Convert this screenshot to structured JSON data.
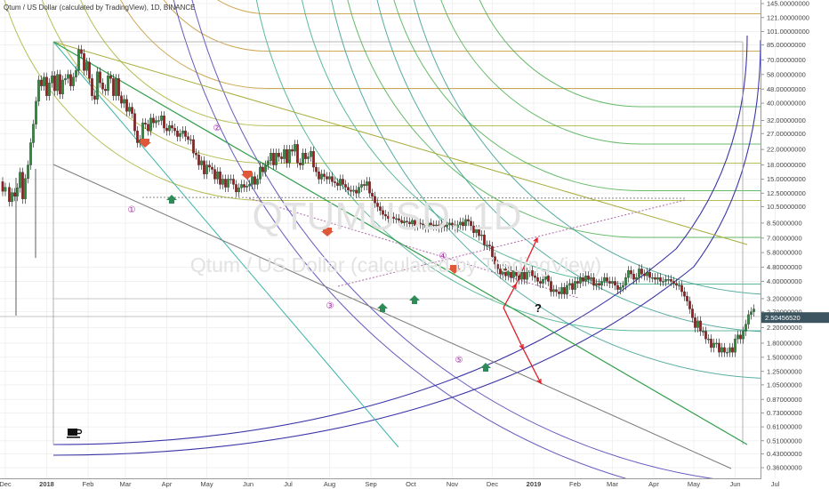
{
  "header": {
    "title": "Qtum / US Dollar (calculated by TradingView), 1D, BINANCE"
  },
  "watermark": {
    "symbol": "QTUMUSD, 1D",
    "name": "Qtum / US Dollar (calculated by TradingView)"
  },
  "chart_data": {
    "type": "candlestick",
    "symbol": "QTUMUSD",
    "interval": "1D",
    "exchange": "BINANCE",
    "y_scale": "log",
    "ylim": [
      0.36,
      145
    ],
    "current_price": "2.50456520",
    "y_ticks": [
      "145.00000000",
      "121.00000000",
      "101.00000000",
      "85.00000000",
      "70.00000000",
      "58.00000000",
      "48.00000000",
      "40.00000000",
      "32.00000000",
      "27.00000000",
      "22.00000000",
      "18.00000000",
      "15.00000000",
      "12.50000000",
      "10.50000000",
      "8.50000000",
      "7.00000000",
      "5.80000000",
      "4.80000000",
      "4.00000000",
      "3.20000000",
      "2.70000000",
      "2.20000000",
      "1.80000000",
      "1.50000000",
      "1.25000000",
      "1.05000000",
      "0.87000000",
      "0.73000000",
      "0.61000000",
      "0.51000000",
      "0.43000000",
      "0.36000000"
    ],
    "x_ticks": [
      "Dec",
      "2018",
      "Feb",
      "Mar",
      "Apr",
      "May",
      "Jun",
      "Jul",
      "Aug",
      "Sep",
      "Oct",
      "Nov",
      "Dec",
      "2019",
      "Feb",
      "Mar",
      "Apr",
      "May",
      "Jun",
      "Jul"
    ],
    "swing_labels": [
      "①",
      "②",
      "③",
      "④",
      "⑤"
    ],
    "annotation": "?",
    "price_path": [
      [
        0,
        14.5
      ],
      [
        2,
        12.8
      ],
      [
        4,
        13.5
      ],
      [
        7,
        11.2
      ],
      [
        9,
        12.6
      ],
      [
        11,
        12.0
      ],
      [
        13,
        13.4
      ],
      [
        15,
        16.4
      ],
      [
        17,
        11.6
      ],
      [
        19,
        15.1
      ],
      [
        21,
        18.0
      ],
      [
        23,
        24.0
      ],
      [
        25,
        30.5
      ],
      [
        27,
        41.0
      ],
      [
        29,
        54.0
      ],
      [
        31,
        50.0
      ],
      [
        33,
        56.0
      ],
      [
        35,
        44.0
      ],
      [
        37,
        52.0
      ],
      [
        39,
        57.0
      ],
      [
        41,
        47.0
      ],
      [
        43,
        58.0
      ],
      [
        45,
        45.0
      ],
      [
        47,
        54.0
      ],
      [
        49,
        55.0
      ],
      [
        51,
        58.0
      ],
      [
        53,
        50.0
      ],
      [
        55,
        56.0
      ],
      [
        57,
        61.0
      ],
      [
        59,
        80.0
      ],
      [
        61,
        76.0
      ],
      [
        63,
        61.0
      ],
      [
        65,
        68.0
      ],
      [
        67,
        55.0
      ],
      [
        69,
        44.0
      ],
      [
        71,
        42.0
      ],
      [
        73,
        60.0
      ],
      [
        75,
        52.0
      ],
      [
        77,
        48.0
      ],
      [
        79,
        47.0
      ],
      [
        81,
        57.0
      ],
      [
        83,
        55.0
      ],
      [
        85,
        44.0
      ],
      [
        87,
        55.0
      ],
      [
        89,
        44.0
      ],
      [
        91,
        40.0
      ],
      [
        93,
        42.0
      ],
      [
        95,
        36.0
      ],
      [
        97,
        38.0
      ],
      [
        99,
        35.0
      ],
      [
        101,
        28.0
      ],
      [
        103,
        24.0
      ],
      [
        105,
        25.0
      ],
      [
        107,
        31.0
      ],
      [
        109,
        30.5
      ],
      [
        111,
        28.0
      ],
      [
        113,
        33.0
      ],
      [
        115,
        31.0
      ],
      [
        117,
        32.0
      ],
      [
        119,
        32.0
      ],
      [
        121,
        34.0
      ],
      [
        123,
        29.0
      ],
      [
        125,
        28.0
      ],
      [
        127,
        30.0
      ],
      [
        129,
        29.0
      ],
      [
        131,
        28.0
      ],
      [
        133,
        26.0
      ],
      [
        135,
        27.0
      ],
      [
        137,
        28.0
      ],
      [
        139,
        26.0
      ],
      [
        141,
        25.0
      ],
      [
        143,
        25.0
      ],
      [
        145,
        21.0
      ],
      [
        147,
        20.5
      ],
      [
        149,
        18.0
      ],
      [
        151,
        19.0
      ],
      [
        153,
        16.0
      ],
      [
        155,
        18.0
      ],
      [
        157,
        17.5
      ],
      [
        159,
        17.0
      ],
      [
        161,
        15.0
      ],
      [
        163,
        16.5
      ],
      [
        165,
        14.0
      ],
      [
        167,
        15.0
      ],
      [
        169,
        13.5
      ],
      [
        171,
        15.0
      ],
      [
        173,
        15.0
      ],
      [
        175,
        14.0
      ],
      [
        177,
        12.7
      ],
      [
        179,
        13.4
      ],
      [
        181,
        14.0
      ],
      [
        183,
        13.5
      ],
      [
        185,
        13.7
      ],
      [
        187,
        14.0
      ],
      [
        189,
        15.5
      ],
      [
        191,
        14.0
      ],
      [
        193,
        15.0
      ],
      [
        195,
        17.5
      ],
      [
        197,
        16.5
      ],
      [
        199,
        18.0
      ],
      [
        201,
        19.0
      ],
      [
        203,
        21.0
      ],
      [
        205,
        18.0
      ],
      [
        207,
        21.0
      ],
      [
        209,
        20.0
      ],
      [
        211,
        19.5
      ],
      [
        213,
        22.0
      ],
      [
        215,
        18.5
      ],
      [
        217,
        22.0
      ],
      [
        219,
        21.5
      ],
      [
        221,
        23.5
      ],
      [
        223,
        18.5
      ],
      [
        225,
        18.0
      ],
      [
        227,
        21.0
      ],
      [
        229,
        19.5
      ],
      [
        231,
        20.0
      ],
      [
        233,
        21.5
      ],
      [
        235,
        17.5
      ],
      [
        237,
        16.5
      ],
      [
        239,
        15.0
      ],
      [
        241,
        16.0
      ],
      [
        243,
        15.5
      ],
      [
        245,
        15.0
      ],
      [
        247,
        15.5
      ],
      [
        249,
        14.5
      ],
      [
        251,
        14.3
      ],
      [
        253,
        13.8
      ],
      [
        255,
        15.0
      ],
      [
        257,
        14.0
      ],
      [
        259,
        13.5
      ],
      [
        261,
        13.0
      ],
      [
        263,
        12.8
      ],
      [
        265,
        13.0
      ],
      [
        267,
        12.5
      ],
      [
        269,
        13.5
      ],
      [
        271,
        14.0
      ],
      [
        273,
        13.8
      ],
      [
        275,
        14.5
      ],
      [
        277,
        12.5
      ],
      [
        279,
        12.0
      ],
      [
        281,
        11.0
      ],
      [
        283,
        10.5
      ],
      [
        285,
        10.0
      ],
      [
        287,
        9.5
      ],
      [
        289,
        9.3
      ],
      [
        291,
        9.0
      ],
      [
        293,
        9.2
      ],
      [
        295,
        9.0
      ],
      [
        297,
        9.0
      ],
      [
        299,
        8.8
      ],
      [
        301,
        8.5
      ],
      [
        303,
        8.7
      ],
      [
        305,
        8.6
      ],
      [
        307,
        8.4
      ],
      [
        309,
        8.8
      ],
      [
        311,
        8.2
      ],
      [
        313,
        8.5
      ],
      [
        315,
        8.4
      ],
      [
        317,
        8.3
      ],
      [
        319,
        8.0
      ],
      [
        321,
        8.5
      ],
      [
        323,
        8.3
      ],
      [
        325,
        8.2
      ],
      [
        327,
        8.3
      ],
      [
        329,
        8.0
      ],
      [
        331,
        8.4
      ],
      [
        333,
        8.1
      ],
      [
        335,
        8.3
      ],
      [
        337,
        8.5
      ],
      [
        339,
        8.3
      ],
      [
        341,
        8.0
      ],
      [
        343,
        8.3
      ],
      [
        345,
        8.6
      ],
      [
        347,
        8.2
      ],
      [
        349,
        8.9
      ],
      [
        351,
        8.7
      ],
      [
        353,
        8.2
      ],
      [
        355,
        7.5
      ],
      [
        357,
        7.8
      ],
      [
        359,
        7.2
      ],
      [
        361,
        7.3
      ],
      [
        363,
        6.4
      ],
      [
        365,
        6.4
      ],
      [
        367,
        6.3
      ],
      [
        369,
        5.5
      ],
      [
        371,
        5.0
      ],
      [
        373,
        4.7
      ],
      [
        375,
        4.4
      ],
      [
        377,
        4.7
      ],
      [
        379,
        4.3
      ],
      [
        381,
        4.6
      ],
      [
        383,
        4.2
      ],
      [
        385,
        4.6
      ],
      [
        387,
        4.3
      ],
      [
        389,
        4.1
      ],
      [
        391,
        4.5
      ],
      [
        393,
        4.1
      ],
      [
        395,
        4.5
      ],
      [
        397,
        4.6
      ],
      [
        399,
        4.3
      ],
      [
        401,
        4.2
      ],
      [
        403,
        4.0
      ],
      [
        405,
        3.9
      ],
      [
        407,
        4.1
      ],
      [
        409,
        4.3
      ],
      [
        411,
        4.0
      ],
      [
        413,
        3.5
      ],
      [
        415,
        3.6
      ],
      [
        417,
        3.5
      ],
      [
        419,
        3.4
      ],
      [
        421,
        3.7
      ],
      [
        423,
        3.4
      ],
      [
        425,
        3.8
      ],
      [
        427,
        3.9
      ],
      [
        429,
        3.6
      ],
      [
        431,
        4.0
      ],
      [
        433,
        3.9
      ],
      [
        435,
        4.2
      ],
      [
        437,
        4.0
      ],
      [
        439,
        4.3
      ],
      [
        441,
        4.1
      ],
      [
        443,
        4.2
      ],
      [
        445,
        3.8
      ],
      [
        447,
        3.9
      ],
      [
        449,
        3.8
      ],
      [
        451,
        4.0
      ],
      [
        453,
        4.2
      ],
      [
        455,
        4.0
      ],
      [
        457,
        3.9
      ],
      [
        459,
        4.0
      ],
      [
        461,
        3.8
      ],
      [
        463,
        3.6
      ],
      [
        465,
        3.7
      ],
      [
        467,
        3.8
      ],
      [
        469,
        4.2
      ],
      [
        471,
        4.6
      ],
      [
        473,
        4.4
      ],
      [
        475,
        4.1
      ],
      [
        477,
        4.2
      ],
      [
        479,
        4.7
      ],
      [
        481,
        4.4
      ],
      [
        483,
        4.3
      ],
      [
        485,
        4.5
      ],
      [
        487,
        4.2
      ],
      [
        489,
        4.2
      ],
      [
        491,
        4.1
      ],
      [
        493,
        4.2
      ],
      [
        495,
        4.0
      ],
      [
        497,
        4.0
      ],
      [
        499,
        4.1
      ],
      [
        501,
        4.1
      ],
      [
        503,
        4.0
      ],
      [
        505,
        3.9
      ],
      [
        507,
        3.8
      ],
      [
        509,
        3.8
      ],
      [
        511,
        3.5
      ],
      [
        513,
        3.3
      ],
      [
        515,
        3.1
      ],
      [
        517,
        2.8
      ],
      [
        519,
        2.5
      ],
      [
        521,
        2.2
      ],
      [
        523,
        2.4
      ],
      [
        525,
        2.1
      ],
      [
        527,
        2.1
      ],
      [
        529,
        1.9
      ],
      [
        531,
        1.9
      ],
      [
        533,
        1.7
      ],
      [
        535,
        1.8
      ],
      [
        537,
        1.8
      ],
      [
        539,
        1.6
      ],
      [
        541,
        1.7
      ],
      [
        543,
        1.6
      ],
      [
        545,
        1.6
      ],
      [
        547,
        1.7
      ],
      [
        549,
        1.6
      ],
      [
        551,
        1.9
      ],
      [
        553,
        2.0
      ],
      [
        555,
        1.9
      ],
      [
        557,
        2.1
      ],
      [
        559,
        2.3
      ],
      [
        561,
        2.6
      ],
      [
        563,
        2.7
      ],
      [
        565,
        2.8
      ]
    ]
  }
}
